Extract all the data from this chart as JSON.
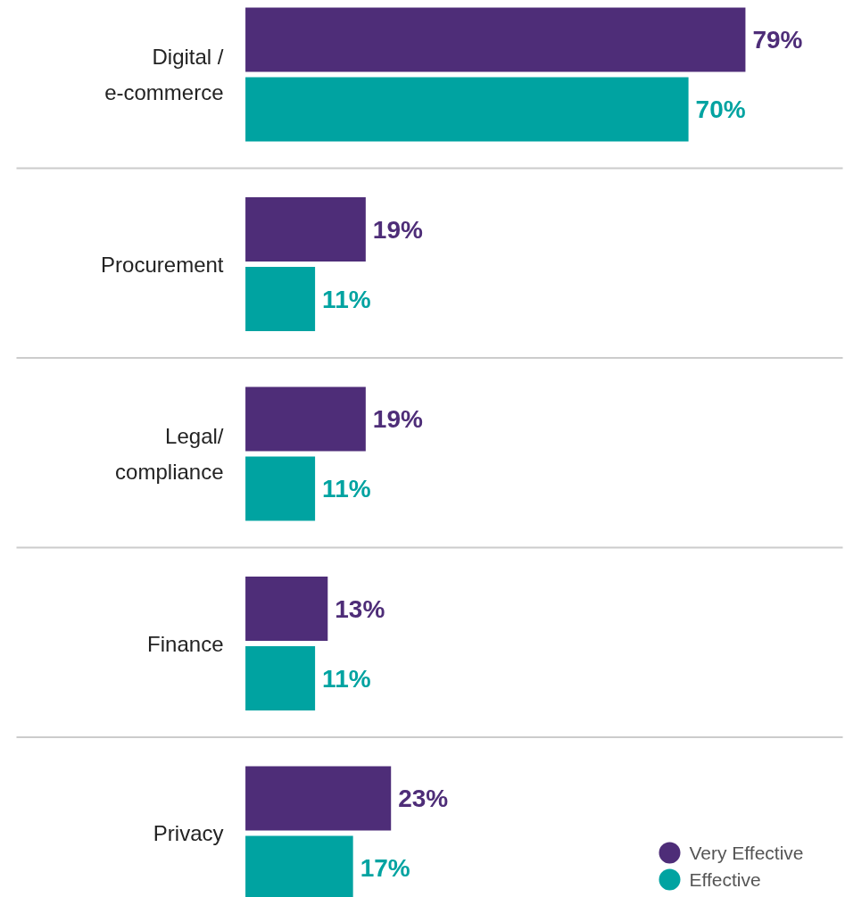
{
  "chart_data": {
    "type": "bar",
    "orientation": "horizontal",
    "categories": [
      "Digital / e-commerce",
      "Procurement",
      "Legal/ compliance",
      "Finance",
      "Privacy"
    ],
    "series": [
      {
        "name": "Very Effective",
        "color": "#4e2d78",
        "values": [
          79,
          19,
          19,
          13,
          23
        ],
        "value_labels": [
          "79%",
          "19%",
          "19%",
          "13%",
          "23%"
        ]
      },
      {
        "name": "Effective",
        "color": "#00a3a1",
        "values": [
          70,
          11,
          11,
          11,
          17
        ],
        "value_labels": [
          "70%",
          "11%",
          "11%",
          "11%",
          "17%"
        ]
      }
    ],
    "grid": "y",
    "legend": "bottom right",
    "tick_labels": "y"
  }
}
